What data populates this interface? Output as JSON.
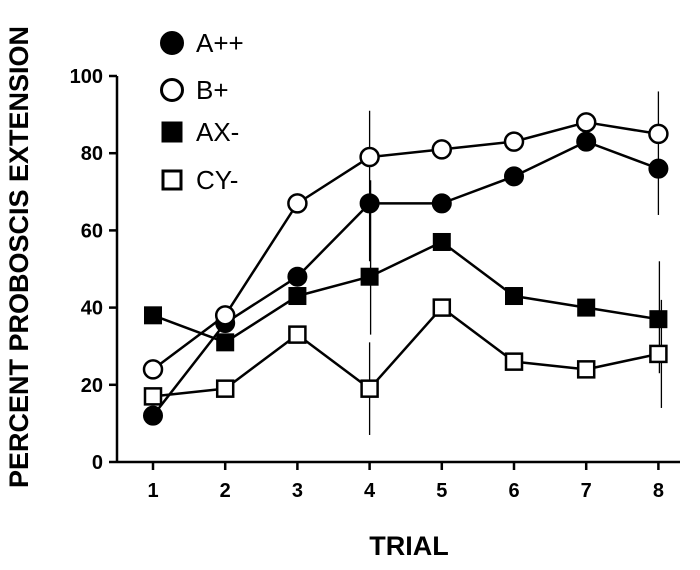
{
  "chart_data": {
    "type": "line",
    "title": "",
    "xlabel": "TRIAL",
    "ylabel": "PERCENT PROBOSCIS EXTENSION",
    "x": [
      1,
      2,
      3,
      4,
      5,
      6,
      7,
      8
    ],
    "xlim": [
      0.5,
      8.5
    ],
    "ylim": [
      0,
      100
    ],
    "yticks": [
      0,
      20,
      40,
      60,
      80,
      100
    ],
    "grid": false,
    "legend_position": "top-left",
    "series": [
      {
        "name": "A++",
        "marker": "filled-circle",
        "values": [
          12,
          36,
          48,
          67,
          67,
          74,
          83,
          76
        ]
      },
      {
        "name": "B+",
        "marker": "open-circle",
        "values": [
          24,
          38,
          67,
          79,
          81,
          83,
          88,
          85
        ]
      },
      {
        "name": "AX-",
        "marker": "filled-square",
        "values": [
          38,
          31,
          43,
          48,
          57,
          43,
          40,
          37
        ]
      },
      {
        "name": "CY-",
        "marker": "open-square",
        "values": [
          17,
          19,
          33,
          19,
          40,
          26,
          24,
          28
        ]
      }
    ],
    "error_bars": [
      {
        "x": 4,
        "low": 52,
        "high": 91
      },
      {
        "x": 4,
        "low": 33,
        "high": 73
      },
      {
        "x": 4,
        "low": 7,
        "high": 31
      },
      {
        "x": 8,
        "low": 64,
        "high": 96
      },
      {
        "x": 8,
        "low": 23,
        "high": 52
      },
      {
        "x": 8,
        "low": 14,
        "high": 42
      }
    ]
  }
}
